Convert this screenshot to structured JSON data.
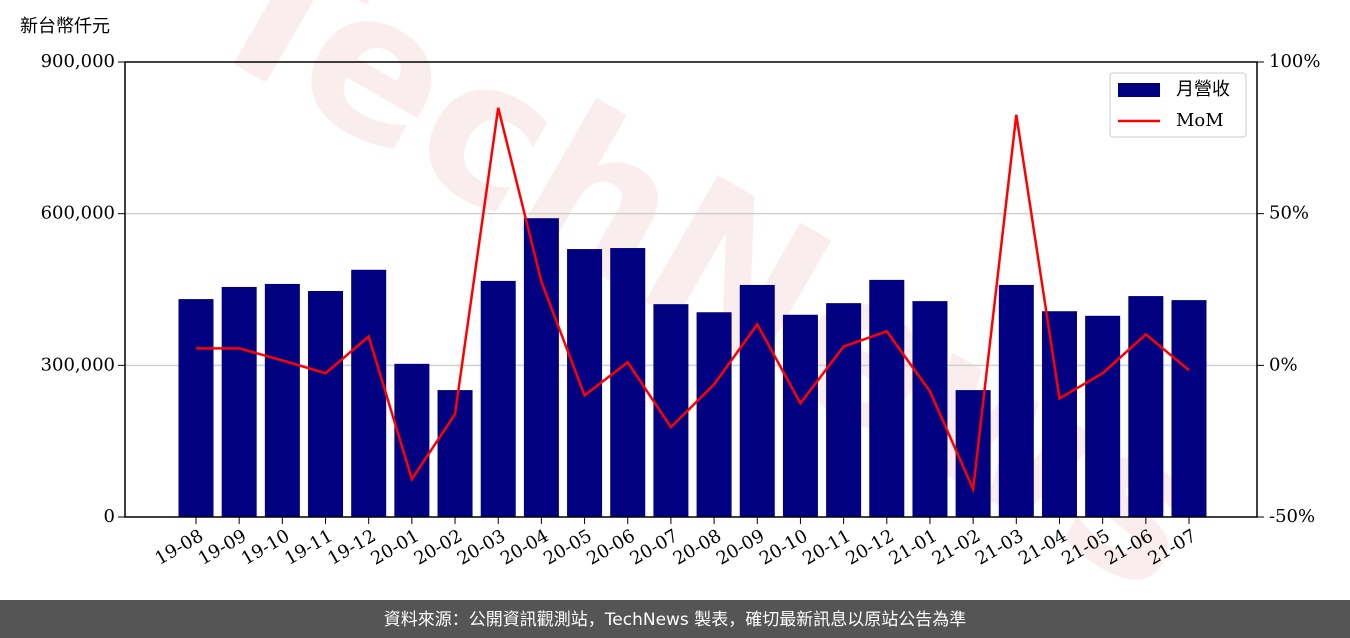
{
  "chart_data": {
    "type": "bar",
    "y_label": "新台幣仟元",
    "watermark": "TechNews",
    "footer": "資料來源：公開資訊觀測站，TechNews 製表，確切最新訊息以原站公告為準",
    "categories": [
      "19-08",
      "19-09",
      "19-10",
      "19-11",
      "19-12",
      "20-01",
      "20-02",
      "20-03",
      "20-04",
      "20-05",
      "20-06",
      "20-07",
      "20-08",
      "20-09",
      "20-10",
      "20-11",
      "20-12",
      "21-01",
      "21-02",
      "21-03",
      "21-04",
      "21-05",
      "21-06",
      "21-07"
    ],
    "series": [
      {
        "name": "月營收",
        "type": "bar",
        "color": "#000080",
        "axis": "y",
        "values": [
          431000,
          455000,
          461000,
          447000,
          489000,
          303000,
          251000,
          467000,
          591000,
          530000,
          532000,
          421000,
          405000,
          459000,
          400000,
          423000,
          469000,
          427000,
          251000,
          459000,
          407000,
          398000,
          437000,
          429000
        ]
      },
      {
        "name": "MoM",
        "type": "line",
        "color": "#ff0000",
        "axis": "y2",
        "values": [
          5.6,
          5.6,
          1.6,
          -2.6,
          9.5,
          -37.5,
          -16.1,
          84.9,
          27.6,
          -9.9,
          1,
          -20.4,
          -6.3,
          13.5,
          -12.5,
          6.2,
          11.2,
          -8.6,
          -40.8,
          82.6,
          -10.9,
          -2.6,
          10.2,
          -1.6
        ]
      }
    ],
    "ylim": [
      0,
      900000
    ],
    "yticks": [
      0,
      {
        "value": 300000,
        "label": "300,000"
      },
      {
        "value": 600000,
        "label": "600,000"
      },
      {
        "value": 900000,
        "label": "900,000"
      }
    ],
    "y2lim": [
      -50,
      100
    ],
    "y2ticks": [
      {
        "value": -50,
        "label": "-50%"
      },
      {
        "value": 0,
        "label": "0%"
      },
      {
        "value": 50,
        "label": "50%"
      },
      {
        "value": 100,
        "label": "100%"
      }
    ],
    "grid": true,
    "legend": "upper right"
  }
}
